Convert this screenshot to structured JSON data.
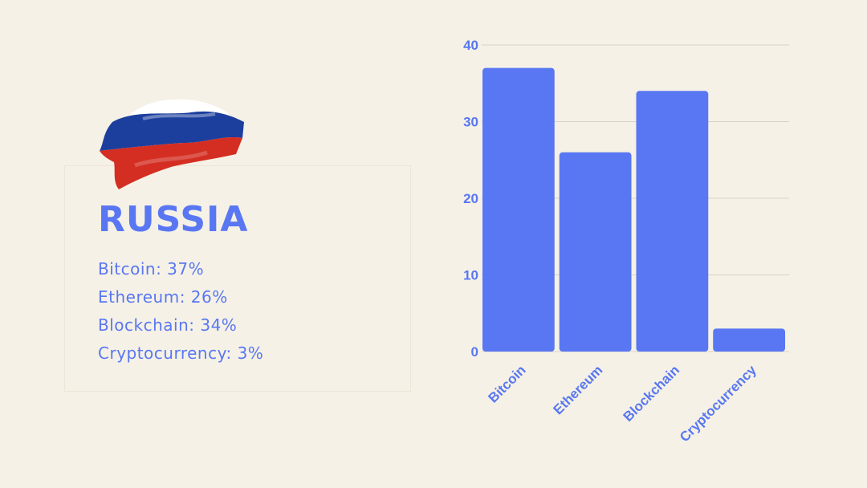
{
  "country": "RUSSIA",
  "stats": [
    "Bitcoin: 37%",
    "Ethereum: 26%",
    "Blockchain: 34%",
    "Cryptocurrency: 3%"
  ],
  "colors": {
    "background": "#f5f1e6",
    "accent": "#5977f2",
    "bar": "#5977f2",
    "flag_white": "#ffffff",
    "flag_blue": "#1c3f9e",
    "flag_red": "#d42e22"
  },
  "chart_data": {
    "type": "bar",
    "categories": [
      "Bitcoin",
      "Ethereum",
      "Blockchain",
      "Cryptocurrency"
    ],
    "values": [
      37,
      26,
      34,
      3
    ],
    "ylim": [
      0,
      40
    ],
    "yticks": [
      0,
      10,
      20,
      30,
      40
    ],
    "grid": true,
    "legend": "none"
  }
}
